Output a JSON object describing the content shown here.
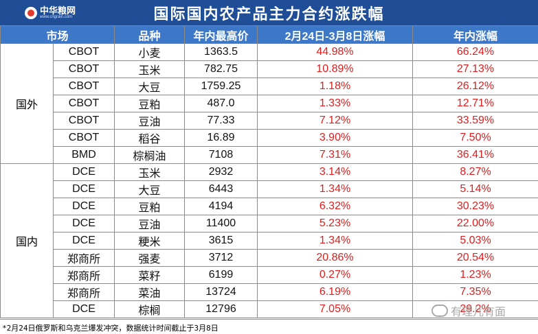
{
  "banner": {
    "logo_text": "中华粮网",
    "logo_sub": "www.cngrain.com",
    "title": "国际国内农产品主力合约涨跌幅"
  },
  "table": {
    "headers": [
      "市场",
      "品种",
      "年内最高价",
      "2月24日-3月8日涨幅",
      "年内涨幅"
    ],
    "groups": [
      {
        "name": "国外",
        "rows": [
          [
            "CBOT",
            "小麦",
            "1363.5",
            "44.98%",
            "66.24%"
          ],
          [
            "CBOT",
            "玉米",
            "782.75",
            "10.89%",
            "27.13%"
          ],
          [
            "CBOT",
            "大豆",
            "1759.25",
            "1.18%",
            "26.12%"
          ],
          [
            "CBOT",
            "豆粕",
            "487.0",
            "1.33%",
            "12.71%"
          ],
          [
            "CBOT",
            "豆油",
            "77.33",
            "7.12%",
            "33.59%"
          ],
          [
            "CBOT",
            "稻谷",
            "16.89",
            "3.90%",
            "7.50%"
          ],
          [
            "BMD",
            "棕榈油",
            "7108",
            "7.31%",
            "36.41%"
          ]
        ]
      },
      {
        "name": "国内",
        "rows": [
          [
            "DCE",
            "玉米",
            "2932",
            "3.14%",
            "8.27%"
          ],
          [
            "DCE",
            "大豆",
            "6443",
            "1.34%",
            "5.14%"
          ],
          [
            "DCE",
            "豆粕",
            "4194",
            "6.32%",
            "30.23%"
          ],
          [
            "DCE",
            "豆油",
            "11400",
            "5.23%",
            "22.00%"
          ],
          [
            "DCE",
            "粳米",
            "3615",
            "1.34%",
            "5.03%"
          ],
          [
            "郑商所",
            "强麦",
            "3712",
            "20.86%",
            "20.54%"
          ],
          [
            "郑商所",
            "菜籽",
            "6199",
            "0.27%",
            "1.23%"
          ],
          [
            "郑商所",
            "菜油",
            "13724",
            "6.19%",
            "7.35%"
          ],
          [
            "DCE",
            "棕榈",
            "12796",
            "7.05%",
            "29.2%"
          ]
        ]
      }
    ]
  },
  "footnote": "*2月24日俄罗斯和乌克兰爆发冲突，数据统计时间截止于3月8日",
  "watermark": "有理儿有面",
  "colors": {
    "header_bg": "#3d78c8",
    "banner_bg": "#1f4e96",
    "positive": "#e11c1c"
  }
}
